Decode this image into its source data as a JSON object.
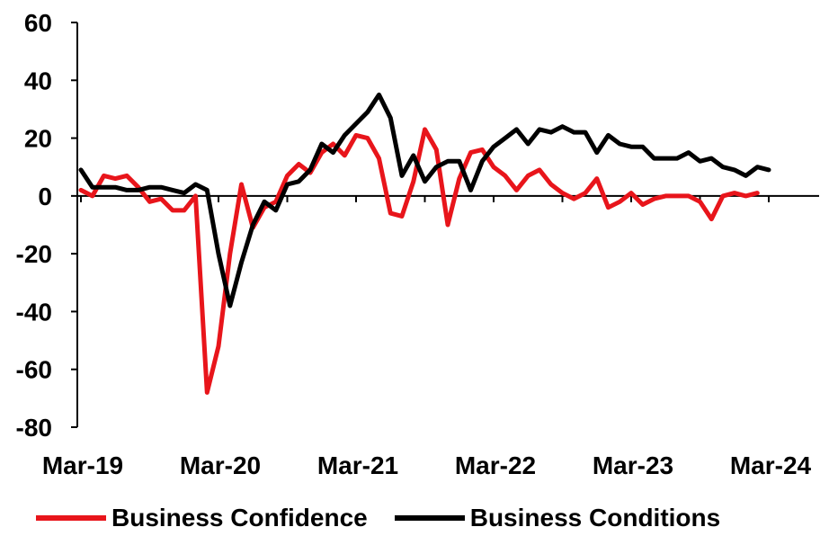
{
  "chart_data": {
    "type": "line",
    "x_start": "Mar-19",
    "x_tick_labels": [
      "Mar-19",
      "Mar-20",
      "Mar-21",
      "Mar-22",
      "Mar-23",
      "Mar-24"
    ],
    "ylim": [
      -80,
      60
    ],
    "y_tick_labels": [
      "60",
      "40",
      "20",
      "0",
      "-20",
      "-40",
      "-60",
      "-80"
    ],
    "series": [
      {
        "name": "Business Confidence",
        "color": "#e8151b",
        "values": [
          2,
          0,
          7,
          6,
          7,
          3,
          -2,
          -1,
          -5,
          -5,
          0,
          -68,
          -52,
          -20,
          4,
          -11,
          -4,
          -2,
          7,
          11,
          8,
          15,
          18,
          14,
          21,
          20,
          13,
          -6,
          -7,
          5,
          23,
          16,
          -10,
          6,
          15,
          16,
          10,
          7,
          2,
          7,
          9,
          4,
          1,
          -1,
          1,
          6,
          -4,
          -2,
          1,
          -3,
          -1,
          0,
          0,
          0,
          -2,
          -8,
          0,
          1,
          0,
          1
        ]
      },
      {
        "name": "Business Conditions",
        "color": "#000000",
        "values": [
          9,
          3,
          3,
          3,
          2,
          2,
          3,
          3,
          2,
          1,
          4,
          2,
          -20,
          -38,
          -23,
          -10,
          -2,
          -5,
          4,
          5,
          9,
          18,
          15,
          21,
          25,
          29,
          35,
          27,
          7,
          14,
          5,
          10,
          12,
          12,
          2,
          12,
          17,
          20,
          23,
          18,
          23,
          22,
          24,
          22,
          22,
          15,
          21,
          18,
          17,
          17,
          13,
          13,
          13,
          15,
          12,
          13,
          10,
          9,
          7,
          10,
          9
        ]
      }
    ]
  },
  "legend": [
    {
      "label": "Business Confidence",
      "color": "#e8151b"
    },
    {
      "label": "Business Conditions",
      "color": "#000000"
    }
  ]
}
